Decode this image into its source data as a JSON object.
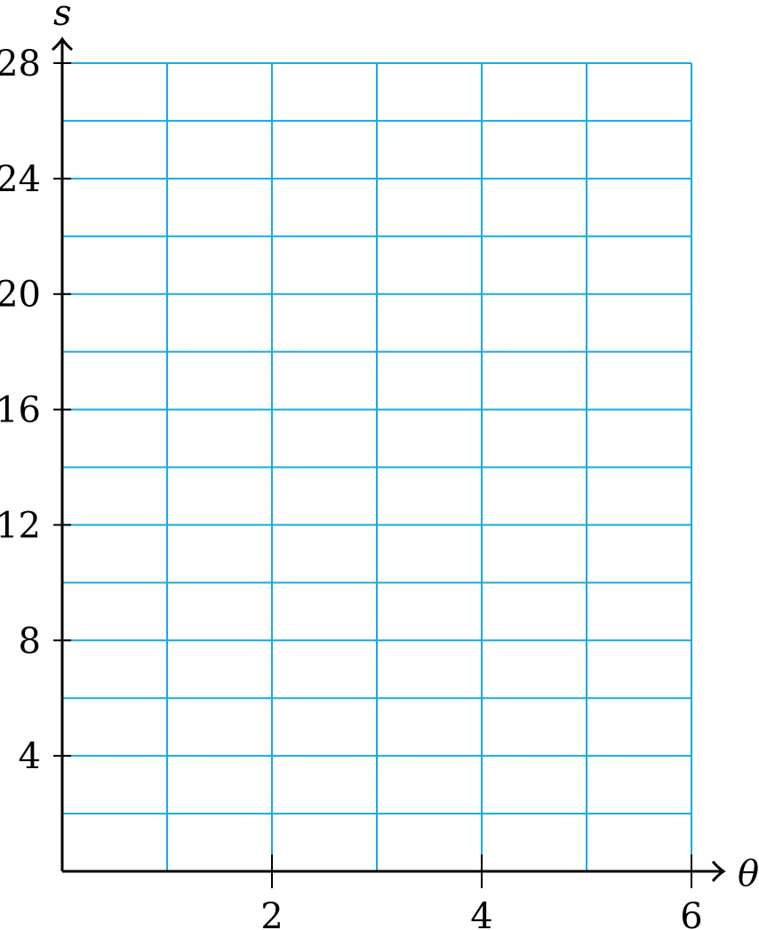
{
  "chart_data": {
    "type": "line",
    "title": "",
    "xlabel": "θ",
    "ylabel": "s",
    "xlim": [
      0,
      6
    ],
    "ylim": [
      0,
      28
    ],
    "x_grid_step": 1,
    "y_grid_step": 2,
    "x_ticks": [
      2,
      4,
      6
    ],
    "y_ticks": [
      4,
      8,
      12,
      16,
      20,
      24,
      28
    ],
    "grid": true,
    "grid_color": "#1ba8e0",
    "series": []
  }
}
